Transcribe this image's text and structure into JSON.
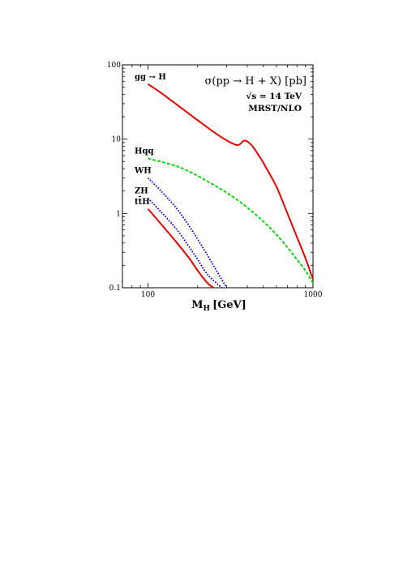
{
  "chart_data": {
    "type": "line",
    "title": "σ(pp → H + X) [pb]",
    "annotations": [
      "√s = 14 TeV",
      "MRST/NLO"
    ],
    "xlabel": "M",
    "xlabel_sub": "H",
    "xlabel_unit": "[GeV]",
    "xscale": "log",
    "yscale": "log",
    "xlim": [
      70,
      1000
    ],
    "ylim": [
      0.1,
      100
    ],
    "x_tick_labels": [
      {
        "value": 100,
        "label": "100"
      },
      {
        "value": 1000,
        "label": "1000"
      }
    ],
    "y_tick_labels": [
      {
        "value": 0.1,
        "label": "0.1"
      },
      {
        "value": 1,
        "label": "1"
      },
      {
        "value": 10,
        "label": "10"
      },
      {
        "value": 100,
        "label": "100"
      }
    ],
    "grid": false,
    "series": [
      {
        "name": "gg → H",
        "color": "#e00000",
        "style": "solid",
        "x": [
          100,
          120,
          150,
          200,
          250,
          300,
          340,
          360,
          380,
          400,
          430,
          470,
          500,
          600,
          700,
          800,
          900,
          1000
        ],
        "y": [
          55,
          42,
          29,
          18,
          12.5,
          9.6,
          8.4,
          8.5,
          9.5,
          9.3,
          8.0,
          6.0,
          4.8,
          2.3,
          1.0,
          0.48,
          0.25,
          0.13
        ]
      },
      {
        "name": "Hqq",
        "color": "#00d000",
        "style": "dashed",
        "x": [
          100,
          150,
          200,
          300,
          400,
          500,
          600,
          700,
          800,
          900,
          1000
        ],
        "y": [
          5.5,
          4.3,
          3.2,
          1.9,
          1.2,
          0.78,
          0.52,
          0.35,
          0.24,
          0.17,
          0.115
        ]
      },
      {
        "name": "WH",
        "color": "#0000d0",
        "style": "dotted",
        "x": [
          100,
          120,
          150,
          180,
          200,
          230,
          260,
          300
        ],
        "y": [
          3.0,
          2.0,
          1.15,
          0.65,
          0.45,
          0.27,
          0.17,
          0.1
        ]
      },
      {
        "name": "ZH",
        "color": "#0000d0",
        "style": "dotted",
        "x": [
          100,
          120,
          150,
          180,
          200,
          230,
          280
        ],
        "y": [
          1.6,
          1.05,
          0.6,
          0.34,
          0.24,
          0.15,
          0.1
        ]
      },
      {
        "name": "tt̄H",
        "color": "#e00000",
        "style": "solid",
        "x": [
          100,
          120,
          150,
          180,
          200,
          230,
          250
        ],
        "y": [
          1.15,
          0.72,
          0.4,
          0.24,
          0.17,
          0.115,
          0.1
        ]
      }
    ]
  }
}
